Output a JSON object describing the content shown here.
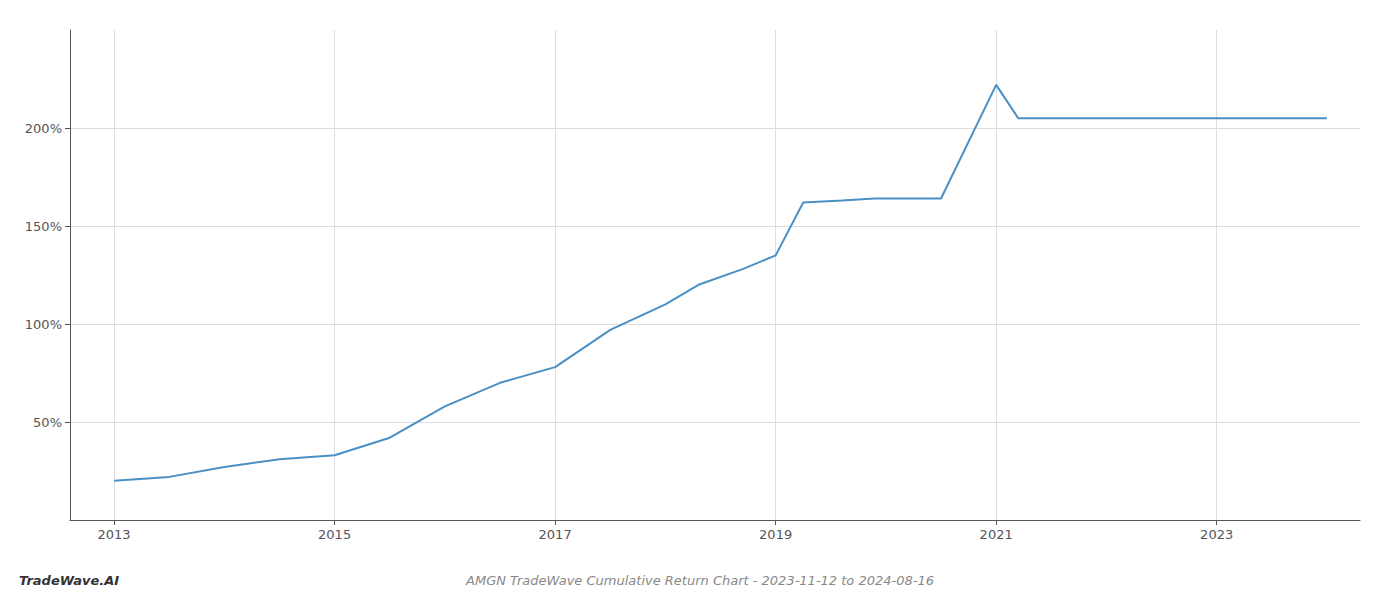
{
  "chart_data": {
    "type": "line",
    "title": "AMGN TradeWave Cumulative Return Chart - 2023-11-12 to 2024-08-16",
    "annotations": [
      "TradeWave.AI"
    ],
    "x": [
      2013.0,
      2013.5,
      2014.0,
      2014.5,
      2015.0,
      2015.5,
      2016.0,
      2016.5,
      2017.0,
      2017.5,
      2018.0,
      2018.3,
      2018.7,
      2019.0,
      2019.25,
      2019.6,
      2019.9,
      2020.5,
      2021.0,
      2021.2,
      2022.0,
      2022.5,
      2023.0,
      2023.5,
      2024.0
    ],
    "values": [
      20,
      22,
      27,
      31,
      33,
      42,
      58,
      70,
      78,
      97,
      110,
      120,
      128,
      135,
      162,
      163,
      164,
      164,
      222,
      205,
      205,
      205,
      205,
      205,
      205
    ],
    "color": "#4a90c4",
    "xlim": [
      2012.6,
      2024.3
    ],
    "xticks": [
      2013,
      2015,
      2017,
      2019,
      2021,
      2023
    ],
    "ylim": [
      0,
      250
    ],
    "yticks": [
      {
        "value": 50,
        "label": "50%"
      },
      {
        "value": 100,
        "label": "100%"
      },
      {
        "value": 150,
        "label": "150%"
      },
      {
        "value": 200,
        "label": "200%"
      }
    ],
    "grid": true
  }
}
